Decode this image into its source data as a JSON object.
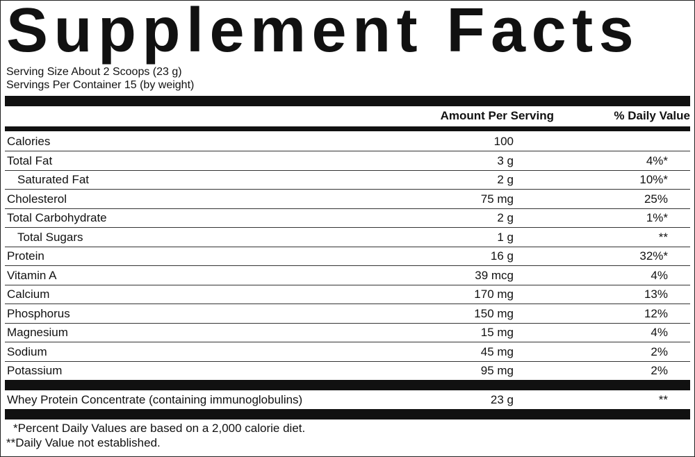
{
  "title": "Supplement Facts",
  "serving_size": "Serving Size About 2 Scoops (23 g)",
  "servings_per_container": "Servings Per Container 15 (by weight)",
  "header": {
    "amount": "Amount Per Serving",
    "daily_value": "% Daily Value"
  },
  "rows": [
    {
      "name": "Calories",
      "amount": "100"
    },
    {
      "name": "Total Fat",
      "amount": "3 g",
      "daily_value": "4%*"
    },
    {
      "name": "Saturated Fat",
      "amount": "2 g",
      "daily_value": "10%*"
    },
    {
      "name": "Cholesterol",
      "amount": "75 mg",
      "daily_value": "25%"
    },
    {
      "name": "Total Carbohydrate",
      "amount": "2 g",
      "daily_value": "1%*"
    },
    {
      "name": "Total Sugars",
      "amount": "1 g",
      "daily_value": "**"
    },
    {
      "name": "Protein",
      "amount": "16 g",
      "daily_value": "32%*"
    },
    {
      "name": "Vitamin A",
      "amount": "39 mcg",
      "daily_value": "4%"
    },
    {
      "name": "Calcium",
      "amount": "170 mg",
      "daily_value": "13%"
    },
    {
      "name": "Phosphorus",
      "amount": "150 mg",
      "daily_value": "12%"
    },
    {
      "name": "Magnesium",
      "amount": "15 mg",
      "daily_value": "4%"
    },
    {
      "name": "Sodium",
      "amount": "45 mg",
      "daily_value": "2%"
    },
    {
      "name": "Potassium",
      "amount": "95 mg",
      "daily_value": "2%"
    }
  ],
  "ingredient": {
    "name": "Whey Protein Concentrate (containing immunoglobulins)",
    "amount": "23 g",
    "daily_value": "**"
  },
  "footnotes": [
    "*Percent Daily Values are based on a 2,000 calorie diet.",
    "**Daily Value not established."
  ]
}
